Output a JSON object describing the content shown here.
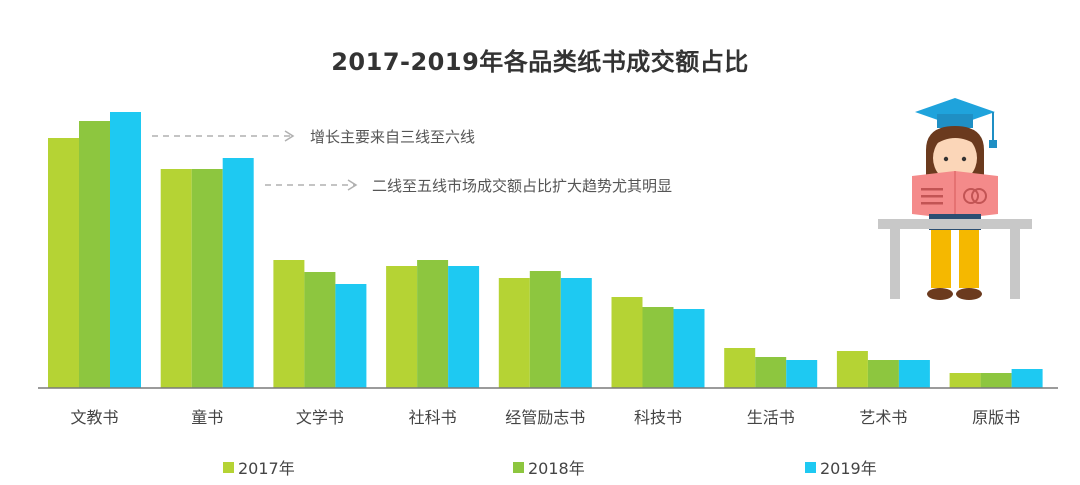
{
  "chart_data": {
    "type": "bar",
    "title": "2017-2019年各品类纸书成交额占比",
    "categories": [
      "文教书",
      "童书",
      "文学书",
      "社科书",
      "经管励志书",
      "科技书",
      "生活书",
      "艺术书",
      "原版书"
    ],
    "series": [
      {
        "name": "2017年",
        "color": "#b5d334",
        "values": [
          25.0,
          21.9,
          12.8,
          12.2,
          11.0,
          9.1,
          4.0,
          3.7,
          1.5
        ]
      },
      {
        "name": "2018年",
        "color": "#8dc63f",
        "values": [
          26.7,
          21.9,
          11.6,
          12.8,
          11.7,
          8.1,
          3.1,
          2.8,
          1.5
        ]
      },
      {
        "name": "2019年",
        "color": "#1ec9f2",
        "values": [
          27.6,
          23.0,
          10.4,
          12.2,
          11.0,
          7.9,
          2.8,
          2.8,
          1.9
        ]
      }
    ],
    "ylim": [
      0,
      28
    ],
    "annotations": [
      "增长主要来自三线至六线",
      "二线至五线市场成交额占比扩大趋势尤其明显"
    ],
    "legend_position": "bottom"
  }
}
